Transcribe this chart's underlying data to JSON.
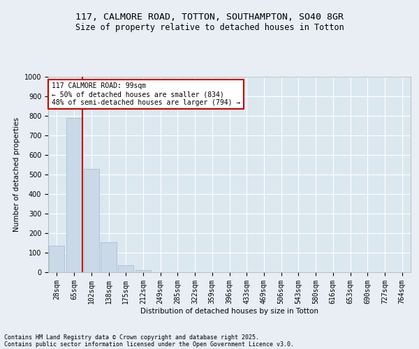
{
  "title1": "117, CALMORE ROAD, TOTTON, SOUTHAMPTON, SO40 8GR",
  "title2": "Size of property relative to detached houses in Totton",
  "xlabel": "Distribution of detached houses by size in Totton",
  "ylabel": "Number of detached properties",
  "categories": [
    "28sqm",
    "65sqm",
    "102sqm",
    "138sqm",
    "175sqm",
    "212sqm",
    "249sqm",
    "285sqm",
    "322sqm",
    "359sqm",
    "396sqm",
    "433sqm",
    "469sqm",
    "506sqm",
    "543sqm",
    "580sqm",
    "616sqm",
    "653sqm",
    "690sqm",
    "727sqm",
    "764sqm"
  ],
  "values": [
    135,
    790,
    530,
    155,
    35,
    10,
    0,
    0,
    0,
    0,
    0,
    0,
    0,
    0,
    0,
    0,
    0,
    0,
    0,
    0,
    0
  ],
  "bar_color": "#c9d9e8",
  "bar_edgecolor": "#a0b8cc",
  "vline_x_index": 2,
  "vline_color": "#cc0000",
  "annotation_text": "117 CALMORE ROAD: 99sqm\n← 50% of detached houses are smaller (834)\n48% of semi-detached houses are larger (794) →",
  "annotation_box_facecolor": "#ffffff",
  "annotation_box_edgecolor": "#cc0000",
  "ylim": [
    0,
    1000
  ],
  "yticks": [
    0,
    100,
    200,
    300,
    400,
    500,
    600,
    700,
    800,
    900,
    1000
  ],
  "footer1": "Contains HM Land Registry data © Crown copyright and database right 2025.",
  "footer2": "Contains public sector information licensed under the Open Government Licence v3.0.",
  "bg_color": "#e8eef4",
  "plot_bg_color": "#dce8f0",
  "title_fontsize": 9.5,
  "subtitle_fontsize": 8.5,
  "axis_label_fontsize": 7.5,
  "tick_fontsize": 7,
  "annot_fontsize": 7,
  "footer_fontsize": 6
}
